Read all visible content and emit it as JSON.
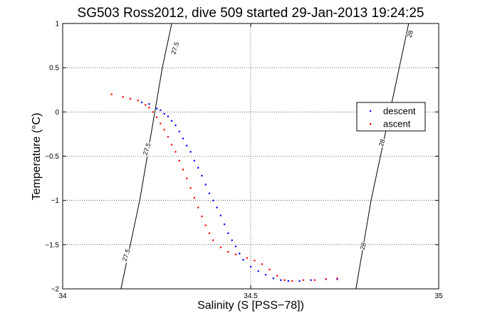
{
  "chart_data": {
    "type": "scatter",
    "title": "SG503 Ross2012, dive 509 started 29-Jan-2013 19:24:25",
    "xlabel": "Salinity (S [PSS−78])",
    "ylabel": "Temperature (°C)",
    "xlim": [
      34,
      35
    ],
    "ylim": [
      -2,
      1
    ],
    "xticks": [
      34,
      34.5,
      35
    ],
    "xtick_labels": [
      "34",
      "34.5",
      "35"
    ],
    "yticks": [
      1,
      0.5,
      0,
      -0.5,
      -1,
      -1.5,
      -2
    ],
    "ytick_labels": [
      "1",
      "0.5",
      "0",
      "−0.5",
      "−1",
      "−1.5",
      "−2"
    ],
    "grid": true,
    "legend_position": "right",
    "series": [
      {
        "name": "descent",
        "color": "#0000ff",
        "points": [
          [
            34.21,
            0.11
          ],
          [
            34.23,
            0.09
          ],
          [
            34.25,
            0.04
          ],
          [
            34.26,
            0.02
          ],
          [
            34.27,
            -0.02
          ],
          [
            34.28,
            -0.05
          ],
          [
            34.29,
            -0.1
          ],
          [
            34.3,
            -0.15
          ],
          [
            34.31,
            -0.22
          ],
          [
            34.32,
            -0.3
          ],
          [
            34.33,
            -0.38
          ],
          [
            34.34,
            -0.45
          ],
          [
            34.35,
            -0.55
          ],
          [
            34.36,
            -0.63
          ],
          [
            34.37,
            -0.72
          ],
          [
            34.38,
            -0.82
          ],
          [
            34.39,
            -0.92
          ],
          [
            34.4,
            -1.0
          ],
          [
            34.41,
            -1.08
          ],
          [
            34.42,
            -1.17
          ],
          [
            34.43,
            -1.27
          ],
          [
            34.44,
            -1.37
          ],
          [
            34.45,
            -1.45
          ],
          [
            34.46,
            -1.52
          ],
          [
            34.47,
            -1.6
          ],
          [
            34.48,
            -1.67
          ],
          [
            34.5,
            -1.75
          ],
          [
            34.52,
            -1.8
          ],
          [
            34.54,
            -1.84
          ],
          [
            34.56,
            -1.88
          ],
          [
            34.58,
            -1.9
          ],
          [
            34.6,
            -1.91
          ],
          [
            34.63,
            -1.91
          ],
          [
            34.66,
            -1.9
          ],
          [
            34.7,
            -1.89
          ],
          [
            34.73,
            -1.89
          ]
        ]
      },
      {
        "name": "ascent",
        "color": "#ff0000",
        "points": [
          [
            34.13,
            0.2
          ],
          [
            34.16,
            0.17
          ],
          [
            34.18,
            0.15
          ],
          [
            34.2,
            0.13
          ],
          [
            34.22,
            0.08
          ],
          [
            34.23,
            0.05
          ],
          [
            34.24,
            0.0
          ],
          [
            34.25,
            -0.06
          ],
          [
            34.26,
            -0.13
          ],
          [
            34.27,
            -0.2
          ],
          [
            34.28,
            -0.28
          ],
          [
            34.29,
            -0.37
          ],
          [
            34.3,
            -0.45
          ],
          [
            34.31,
            -0.55
          ],
          [
            34.32,
            -0.65
          ],
          [
            34.33,
            -0.75
          ],
          [
            34.34,
            -0.86
          ],
          [
            34.35,
            -0.97
          ],
          [
            34.36,
            -1.08
          ],
          [
            34.37,
            -1.18
          ],
          [
            34.38,
            -1.28
          ],
          [
            34.39,
            -1.37
          ],
          [
            34.4,
            -1.45
          ],
          [
            34.42,
            -1.53
          ],
          [
            34.44,
            -1.58
          ],
          [
            34.46,
            -1.61
          ],
          [
            34.49,
            -1.65
          ],
          [
            34.51,
            -1.68
          ],
          [
            34.53,
            -1.72
          ],
          [
            34.55,
            -1.78
          ],
          [
            34.57,
            -1.85
          ],
          [
            34.59,
            -1.9
          ],
          [
            34.61,
            -1.91
          ],
          [
            34.64,
            -1.9
          ],
          [
            34.67,
            -1.9
          ],
          [
            34.7,
            -1.89
          ],
          [
            34.73,
            -1.88
          ]
        ]
      }
    ],
    "contours": [
      {
        "label": "27.5",
        "points": [
          [
            34.155,
            -2
          ],
          [
            34.18,
            -1.5
          ],
          [
            34.205,
            -1.0
          ],
          [
            34.225,
            -0.5
          ],
          [
            34.245,
            0.0
          ],
          [
            34.265,
            0.5
          ],
          [
            34.29,
            1.0
          ]
        ],
        "label_positions": [
          [
            34.17,
            -1.62
          ],
          [
            34.225,
            -0.42
          ],
          [
            34.3,
            0.72
          ]
        ]
      },
      {
        "label": "28",
        "points": [
          [
            34.78,
            -2
          ],
          [
            34.8,
            -1.5
          ],
          [
            34.82,
            -1.0
          ],
          [
            34.845,
            -0.5
          ],
          [
            34.87,
            0.0
          ],
          [
            34.895,
            0.5
          ],
          [
            34.92,
            1.0
          ]
        ],
        "label_positions": [
          [
            34.8,
            -1.52
          ],
          [
            34.85,
            -0.35
          ],
          [
            34.925,
            0.88
          ]
        ]
      }
    ]
  }
}
